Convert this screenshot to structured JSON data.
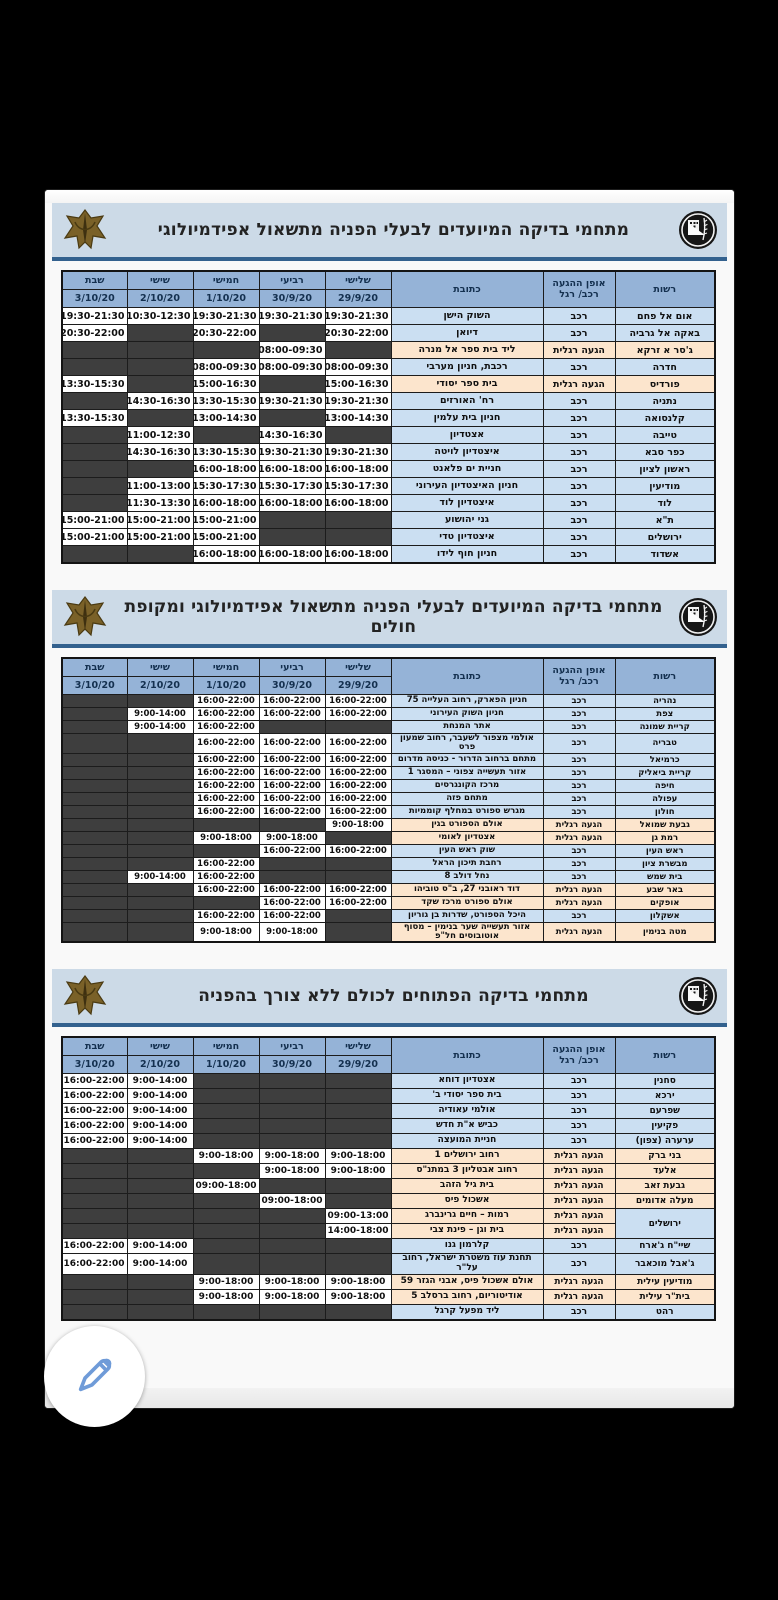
{
  "colors": {
    "banner_bg": "#ccdae7",
    "banner_rule": "#33618e",
    "header_cell_bg": "#95b3d7",
    "row_car_bg": "#cbdff2",
    "row_foot_bg": "#fce5cd",
    "empty_cell_bg": "#3e3e3e",
    "pencil_icon_blue": "#6f9bd8"
  },
  "fab": {
    "icon": "pencil-icon"
  },
  "header_columns": {
    "authority": "רשות",
    "access_line1": "אופן ההגעה",
    "access_line2": "רכב/ רגל",
    "address": "כתובת",
    "days": [
      {
        "name": "שלישי",
        "date": "29/9/20"
      },
      {
        "name": "רביעי",
        "date": "30/9/20"
      },
      {
        "name": "חמישי",
        "date": "1/10/20"
      },
      {
        "name": "שישי",
        "date": "2/10/20"
      },
      {
        "name": "שבת",
        "date": "3/10/20"
      }
    ]
  },
  "tables": [
    {
      "title": "מתחמי בדיקה המיועדים לבעלי הפניה מתשאול אפידמיולוגי",
      "rows": [
        {
          "authority": "אום אל פחם",
          "type": "car",
          "access": "רכב",
          "address": "השוק הישן",
          "times": [
            "19:30-21:30",
            "19:30-21:30",
            "19:30-21:30",
            "10:30-12:30",
            "19:30-21:30"
          ]
        },
        {
          "authority": "באקה אל גרביה",
          "type": "car",
          "access": "רכב",
          "address": "דיואן",
          "times": [
            "20:30-22:00",
            "",
            "20:30-22:00",
            "",
            "20:30-22:00"
          ]
        },
        {
          "authority": "ג'סר א זרקא",
          "type": "foot",
          "access": "הגעה רגלית",
          "address": "ליד בית ספר אל מנרה",
          "times": [
            "",
            "08:00-09:30",
            "",
            "",
            ""
          ]
        },
        {
          "authority": "חדרה",
          "type": "car",
          "access": "רכב",
          "address": "רכבת, חניון מערבי",
          "times": [
            "08:00-09:30",
            "08:00-09:30",
            "08:00-09:30",
            "",
            ""
          ]
        },
        {
          "authority": "פורדיס",
          "type": "foot",
          "access": "הגעה רגלית",
          "address": "בית ספר יסודי",
          "times": [
            "15:00-16:30",
            "",
            "15:00-16:30",
            "",
            "13:30-15:30"
          ]
        },
        {
          "authority": "נתניה",
          "type": "car",
          "access": "רכב",
          "address": "רח' האורזים",
          "times": [
            "19:30-21:30",
            "19:30-21:30",
            "13:30-15:30",
            "14:30-16:30",
            ""
          ]
        },
        {
          "authority": "קלנסואה",
          "type": "car",
          "access": "רכב",
          "address": "חניון בית עלמין",
          "times": [
            "13:00-14:30",
            "",
            "13:00-14:30",
            "",
            "13:30-15:30"
          ]
        },
        {
          "authority": "טייבה",
          "type": "car",
          "access": "רכב",
          "address": "אצטדיון",
          "times": [
            "",
            "14:30-16:30",
            "",
            "11:00-12:30",
            ""
          ]
        },
        {
          "authority": "כפר סבא",
          "type": "car",
          "access": "רכב",
          "address": "איצטדיון לויטה",
          "times": [
            "19:30-21:30",
            "19:30-21:30",
            "13:30-15:30",
            "14:30-16:30",
            ""
          ]
        },
        {
          "authority": "ראשון לציון",
          "type": "car",
          "access": "רכב",
          "address": "חניית ים פלאנט",
          "times": [
            "16:00-18:00",
            "16:00-18:00",
            "16:00-18:00",
            "",
            ""
          ]
        },
        {
          "authority": "מודיעין",
          "type": "car",
          "access": "רכב",
          "address": "חניון האיצטדיון העירוני",
          "times": [
            "15:30-17:30",
            "15:30-17:30",
            "15:30-17:30",
            "11:00-13:00",
            ""
          ]
        },
        {
          "authority": "לוד",
          "type": "car",
          "access": "רכב",
          "address": "איצטדיון לוד",
          "times": [
            "16:00-18:00",
            "16:00-18:00",
            "16:00-18:00",
            "11:30-13:30",
            ""
          ]
        },
        {
          "authority": "ת\"א",
          "type": "car",
          "access": "רכב",
          "address": "גני יהושוע",
          "times": [
            "",
            "",
            "15:00-21:00",
            "15:00-21:00",
            "15:00-21:00"
          ]
        },
        {
          "authority": "ירושלים",
          "type": "car",
          "access": "רכב",
          "address": "איצטדיון טדי",
          "times": [
            "",
            "",
            "15:00-21:00",
            "15:00-21:00",
            "15:00-21:00"
          ]
        },
        {
          "authority": "אשדוד",
          "type": "car",
          "access": "רכב",
          "address": "חניון חוף לידו",
          "times": [
            "16:00-18:00",
            "16:00-18:00",
            "16:00-18:00",
            "",
            ""
          ]
        }
      ]
    },
    {
      "title": "מתחמי בדיקה המיועדים לבעלי הפניה מתשאול אפידמיולוגי ומקופת חולים",
      "rows": [
        {
          "authority": "נהריה",
          "type": "car",
          "access": "רכב",
          "address": "חניון הפארק, רחוב העלייה 75",
          "times": [
            "16:00-22:00",
            "16:00-22:00",
            "16:00-22:00",
            "",
            ""
          ]
        },
        {
          "authority": "צפת",
          "type": "car",
          "access": "רכב",
          "address": "חניון השוק העירוני",
          "times": [
            "16:00-22:00",
            "16:00-22:00",
            "16:00-22:00",
            "9:00-14:00",
            ""
          ]
        },
        {
          "authority": "קריית שמונה",
          "type": "car",
          "access": "רכב",
          "address": "אתר המנחת",
          "times": [
            "",
            "",
            "16:00-22:00",
            "9:00-14:00",
            ""
          ]
        },
        {
          "authority": "טבריה",
          "type": "car",
          "access": "רכב",
          "address": "אולמי מצפור לשעבר, רחוב שמעון פרס",
          "times": [
            "16:00-22:00",
            "16:00-22:00",
            "16:00-22:00",
            "",
            ""
          ]
        },
        {
          "authority": "כרמיאל",
          "type": "car",
          "access": "רכב",
          "address": "מתחם ברחוב הדרור - כניסה מדרום",
          "times": [
            "16:00-22:00",
            "16:00-22:00",
            "16:00-22:00",
            "",
            ""
          ]
        },
        {
          "authority": "קריית ביאליק",
          "type": "car",
          "access": "רכב",
          "address": "אזור תעשייה צפוני – המסגר 1",
          "times": [
            "16:00-22:00",
            "16:00-22:00",
            "16:00-22:00",
            "",
            ""
          ]
        },
        {
          "authority": "חיפה",
          "type": "car",
          "access": "רכב",
          "address": "מרכז הקונגרסים",
          "times": [
            "16:00-22:00",
            "16:00-22:00",
            "16:00-22:00",
            "",
            ""
          ]
        },
        {
          "authority": "עפולה",
          "type": "car",
          "access": "רכב",
          "address": "מתחם פזה",
          "times": [
            "16:00-22:00",
            "16:00-22:00",
            "16:00-22:00",
            "",
            ""
          ]
        },
        {
          "authority": "חולון",
          "type": "car",
          "access": "רכב",
          "address": "מגרש ספורט במחלף קוממיות",
          "times": [
            "16:00-22:00",
            "16:00-22:00",
            "16:00-22:00",
            "",
            ""
          ]
        },
        {
          "authority": "גבעת שמואל",
          "type": "foot",
          "access": "הגעה רגלית",
          "address": "אולם הספורט בגין",
          "times": [
            "9:00-18:00",
            "",
            "",
            "",
            ""
          ]
        },
        {
          "authority": "רמת גן",
          "type": "foot",
          "access": "הגעה רגלית",
          "address": "אצטדיון לאומי",
          "times": [
            "",
            "9:00-18:00",
            "9:00-18:00",
            "",
            ""
          ]
        },
        {
          "authority": "ראש העין",
          "type": "car",
          "access": "רכב",
          "address": "שוק ראש העין",
          "times": [
            "16:00-22:00",
            "16:00-22:00",
            "",
            "",
            ""
          ]
        },
        {
          "authority": "מבשרת ציון",
          "type": "car",
          "access": "רכב",
          "address": "רחבת תיכון הראל",
          "times": [
            "",
            "",
            "16:00-22:00",
            "",
            ""
          ]
        },
        {
          "authority": "בית שמש",
          "type": "car",
          "access": "רכב",
          "address": "נחל דולב 8",
          "times": [
            "",
            "",
            "16:00-22:00",
            "9:00-14:00",
            ""
          ]
        },
        {
          "authority": "באר שבע",
          "type": "foot",
          "access": "הגעה רגלית",
          "address": "דוד ראובני 27, ב\"ס טוביהו",
          "times": [
            "16:00-22:00",
            "16:00-22:00",
            "16:00-22:00",
            "",
            ""
          ]
        },
        {
          "authority": "אופקים",
          "type": "foot",
          "access": "הגעה רגלית",
          "address": "אולם ספורט מרכז שקד",
          "times": [
            "16:00-22:00",
            "16:00-22:00",
            "",
            "",
            ""
          ]
        },
        {
          "authority": "אשקלון",
          "type": "car",
          "access": "רכב",
          "address": "היכל הספורט, שדרות בן גוריון",
          "times": [
            "",
            "16:00-22:00",
            "16:00-22:00",
            "",
            ""
          ]
        },
        {
          "authority": "מטה בנימין",
          "type": "foot",
          "access": "הגעה רגלית",
          "address": "אזור תעשייה שער בנימין – מסוף אוטובוסים חל\"פ",
          "times": [
            "",
            "9:00-18:00",
            "9:00-18:00",
            "",
            ""
          ]
        }
      ]
    },
    {
      "title": "מתחמי בדיקה הפתוחים לכולם ללא צורך בהפניה",
      "rows": [
        {
          "authority": "סחנין",
          "type": "car",
          "access": "רכב",
          "address": "אצטדיון דוחא",
          "times": [
            "",
            "",
            "",
            "9:00-14:00",
            "16:00-22:00"
          ]
        },
        {
          "authority": "ירכא",
          "type": "car",
          "access": "רכב",
          "address": "בית ספר יסודי ב'",
          "times": [
            "",
            "",
            "",
            "9:00-14:00",
            "16:00-22:00"
          ]
        },
        {
          "authority": "שפרעם",
          "type": "car",
          "access": "רכב",
          "address": "אולמי עאודיה",
          "times": [
            "",
            "",
            "",
            "9:00-14:00",
            "16:00-22:00"
          ]
        },
        {
          "authority": "פקיעין",
          "type": "car",
          "access": "רכב",
          "address": "כביש א\"ת חדש",
          "times": [
            "",
            "",
            "",
            "9:00-14:00",
            "16:00-22:00"
          ]
        },
        {
          "authority": "ערערה (צפון)",
          "type": "car",
          "access": "רכב",
          "address": "חניית המועצה",
          "times": [
            "",
            "",
            "",
            "9:00-14:00",
            "16:00-22:00"
          ]
        },
        {
          "authority": "בני ברק",
          "type": "foot",
          "access": "הגעה רגלית",
          "address": "רחוב ירושלים 1",
          "times": [
            "9:00-18:00",
            "9:00-18:00",
            "9:00-18:00",
            "",
            ""
          ]
        },
        {
          "authority": "אלעד",
          "type": "foot",
          "access": "הגעה רגלית",
          "address": "רחוב אבטליון 3 במתנ\"ס",
          "times": [
            "9:00-18:00",
            "9:00-18:00",
            "",
            "",
            ""
          ]
        },
        {
          "authority": "גבעת זאב",
          "type": "foot",
          "access": "הגעה רגלית",
          "address": "בית גיל הזהב",
          "times": [
            "",
            "",
            "09:00-18:00",
            "",
            ""
          ]
        },
        {
          "authority": "מעלה אדומים",
          "type": "foot",
          "access": "הגעה רגלית",
          "address": "אשכול פיס",
          "times": [
            "",
            "09:00-18:00",
            "",
            "",
            ""
          ]
        },
        {
          "authority": "ירושלים",
          "type": "car",
          "subrows": [
            {
              "access": "הגעה רגלית",
              "address": "רמות – חיים גרינברג",
              "times": [
                "09:00-13:00",
                "",
                "",
                "",
                ""
              ]
            },
            {
              "access": "הגעה רגלית",
              "address": "בית וגן – פינת צבי",
              "times": [
                "14:00-18:00",
                "",
                "",
                "",
                ""
              ]
            }
          ]
        },
        {
          "authority": "שיי\"ח ג'ארח",
          "type": "car",
          "access": "רכב",
          "address": "קלרמון גנו",
          "times": [
            "",
            "",
            "",
            "9:00-14:00",
            "16:00-22:00"
          ]
        },
        {
          "authority": "ג'אבל מוכאבר",
          "type": "car",
          "access": "רכב",
          "address": "תחנת עוז משטרת ישראל, רחוב על\"ר",
          "times": [
            "",
            "",
            "",
            "9:00-14:00",
            "16:00-22:00"
          ]
        },
        {
          "authority": "מודיעין עילית",
          "type": "foot",
          "access": "הגעה רגלית",
          "address": "אולם אשכול פיס, אבני הגזר 59",
          "times": [
            "9:00-18:00",
            "9:00-18:00",
            "9:00-18:00",
            "",
            ""
          ]
        },
        {
          "authority": "בית\"ר עילית",
          "type": "foot",
          "access": "הגעה רגלית",
          "address": "אודיטוריום, רחוב ברסלב 5",
          "times": [
            "9:00-18:00",
            "9:00-18:00",
            "9:00-18:00",
            "",
            ""
          ]
        },
        {
          "authority": "רהט",
          "type": "car",
          "access": "רכב",
          "address": "ליד מפעל קרגל",
          "times": [
            "",
            "",
            "",
            "",
            ""
          ]
        }
      ]
    }
  ]
}
